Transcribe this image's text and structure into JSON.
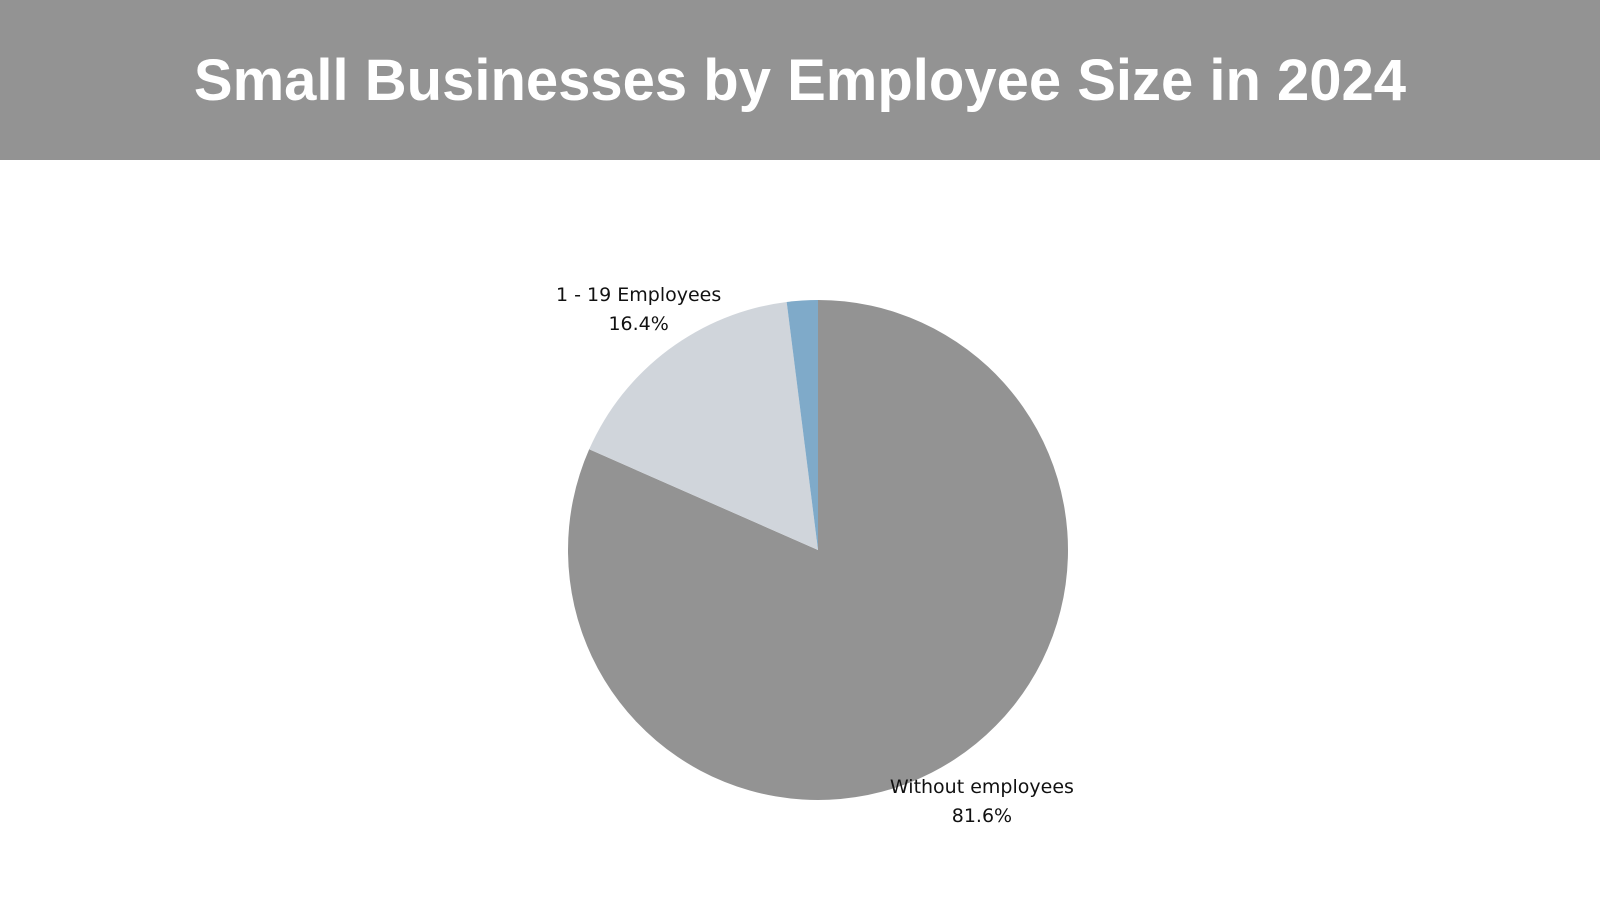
{
  "chart_data": {
    "type": "pie",
    "title": "Small Businesses by Employee Size in 2024",
    "categories": [
      "Without employees",
      "1 - 19 Employees",
      null
    ],
    "values": [
      81.6,
      16.4,
      2.0
    ],
    "value_labels": [
      "81.6%",
      "16.4%",
      null
    ],
    "colors": [
      "#939393",
      "#d0d5db",
      "#7faac9"
    ]
  }
}
